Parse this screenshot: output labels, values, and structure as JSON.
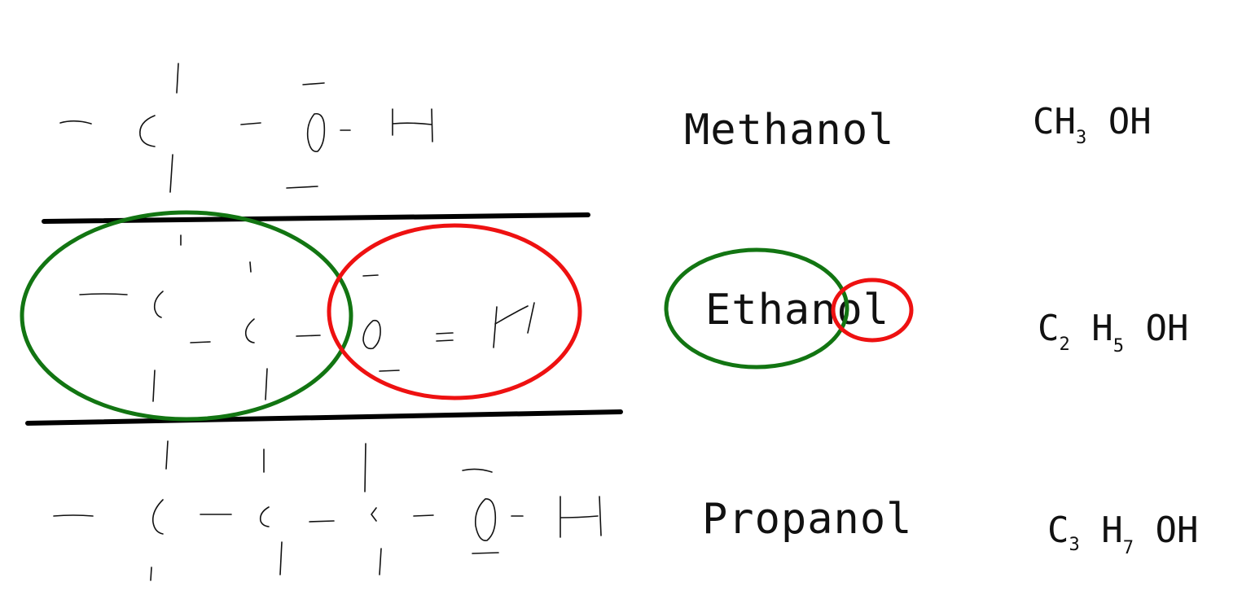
{
  "colors": {
    "ink": "#111111",
    "green": "#127512",
    "red": "#ee1111",
    "black_rule": "#000000",
    "background": "#ffffff"
  },
  "rows": [
    {
      "name": "Methanol",
      "formula": {
        "parts": [
          "CH",
          "3",
          " OH"
        ]
      }
    },
    {
      "name": "Ethanol",
      "formula": {
        "parts": [
          "C",
          "2",
          " H",
          "5",
          " OH"
        ]
      }
    },
    {
      "name": "Propanol",
      "formula": {
        "parts": [
          "C",
          "3",
          " H",
          "7",
          " OH"
        ]
      }
    }
  ]
}
